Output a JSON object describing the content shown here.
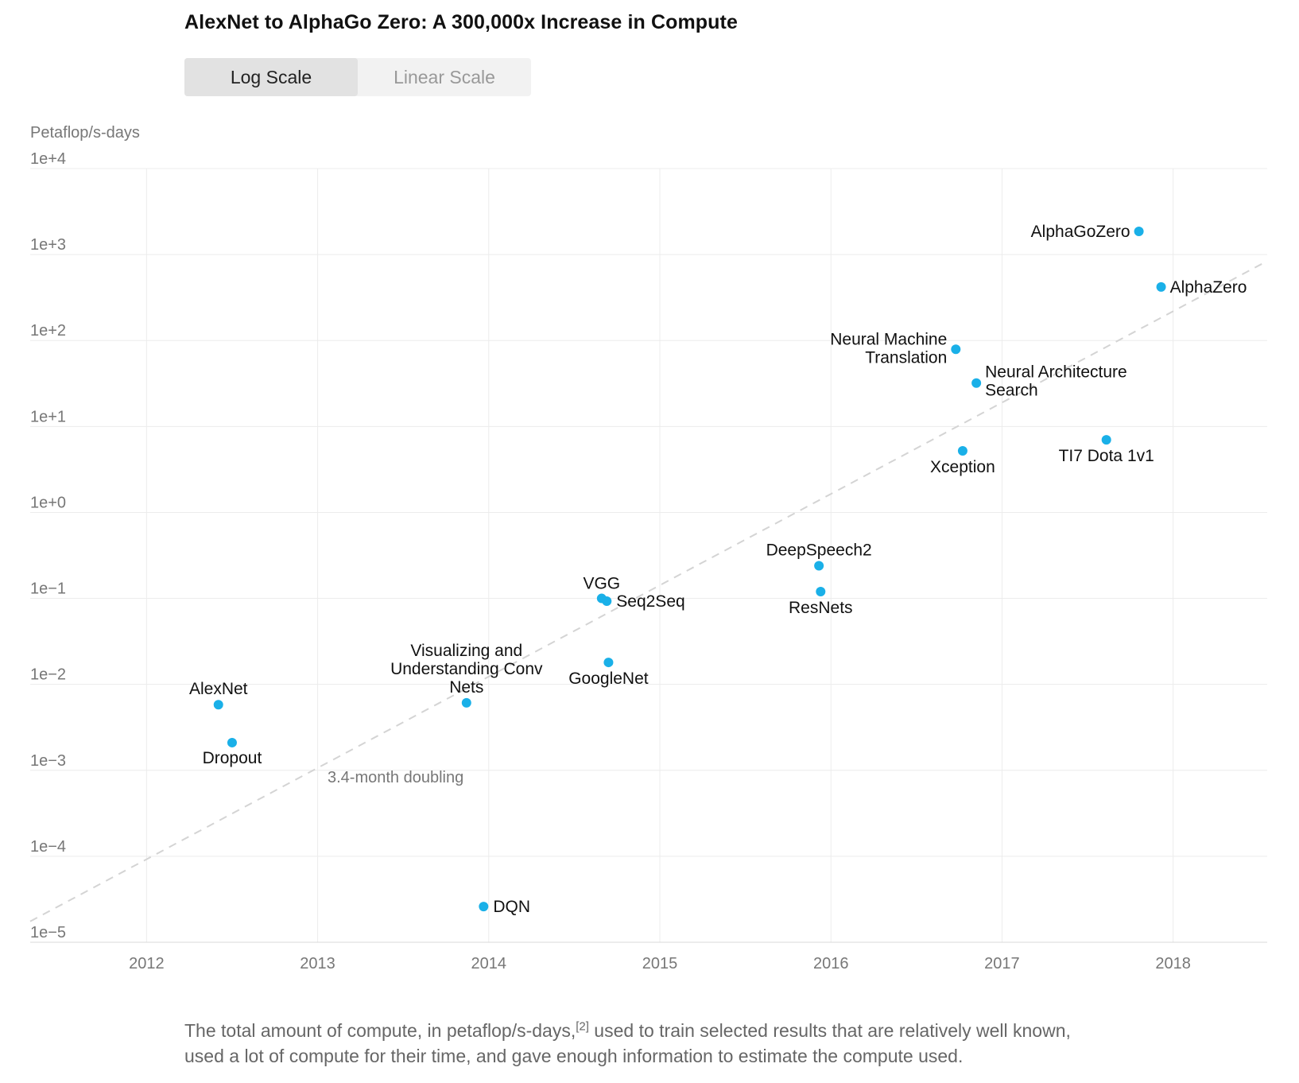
{
  "header": {
    "title": "AlexNet to AlphaGo Zero: A 300,000x Increase in Compute"
  },
  "toggle": {
    "options": [
      "Log Scale",
      "Linear Scale"
    ],
    "selected": "Log Scale"
  },
  "caption": {
    "text_before": "The total amount of compute, in petaflop/s-days,",
    "footnote": "[2]",
    "text_after": " used to train selected results that are relatively well known, used a lot of compute for their time, and gave enough information to estimate the compute used."
  },
  "colors": {
    "point": "#1ab0e8",
    "trend": "#d4d4d4",
    "grid": "#ececec",
    "tick_text": "#777777",
    "label_text": "#111111"
  },
  "chart_data": {
    "type": "scatter",
    "ylabel": "Petaflop/s-days",
    "yscale": "log",
    "xlim": [
      2011.32,
      2018.55
    ],
    "ylim": [
      1e-05,
      10000
    ],
    "x_ticks": [
      "2012",
      "2013",
      "2014",
      "2015",
      "2016",
      "2017",
      "2018"
    ],
    "y_ticks": [
      "1e+4",
      "1e+3",
      "1e+2",
      "1e+1",
      "1e+0",
      "1e−1",
      "1e−2",
      "1e−3",
      "1e−4",
      "1e−5"
    ],
    "grid": true,
    "points": [
      {
        "label": "AlexNet",
        "x": 2012.42,
        "y": 0.0058
      },
      {
        "label": "Dropout",
        "x": 2012.5,
        "y": 0.0021
      },
      {
        "label": "Visualizing and Understanding Conv Nets",
        "x": 2013.87,
        "y": 0.0061
      },
      {
        "label": "DQN",
        "x": 2013.97,
        "y": 2.6e-05
      },
      {
        "label": "VGG",
        "x": 2014.66,
        "y": 0.1
      },
      {
        "label": "Seq2Seq",
        "x": 2014.69,
        "y": 0.093
      },
      {
        "label": "GoogleNet",
        "x": 2014.7,
        "y": 0.018
      },
      {
        "label": "DeepSpeech2",
        "x": 2015.93,
        "y": 0.24
      },
      {
        "label": "ResNets",
        "x": 2015.94,
        "y": 0.12
      },
      {
        "label": "Neural Machine Translation",
        "x": 2016.73,
        "y": 79
      },
      {
        "label": "Neural Architecture Search",
        "x": 2016.85,
        "y": 32
      },
      {
        "label": "Xception",
        "x": 2016.77,
        "y": 5.2
      },
      {
        "label": "TI7 Dota 1v1",
        "x": 2017.61,
        "y": 7
      },
      {
        "label": "AlphaGoZero",
        "x": 2017.8,
        "y": 1860
      },
      {
        "label": "AlphaZero",
        "x": 2017.93,
        "y": 420
      }
    ],
    "trend": {
      "label": "3.4-month doubling",
      "from": {
        "x": 2011.32,
        "y": 1.75e-05
      },
      "to": {
        "x": 2018.55,
        "y": 840
      }
    }
  }
}
